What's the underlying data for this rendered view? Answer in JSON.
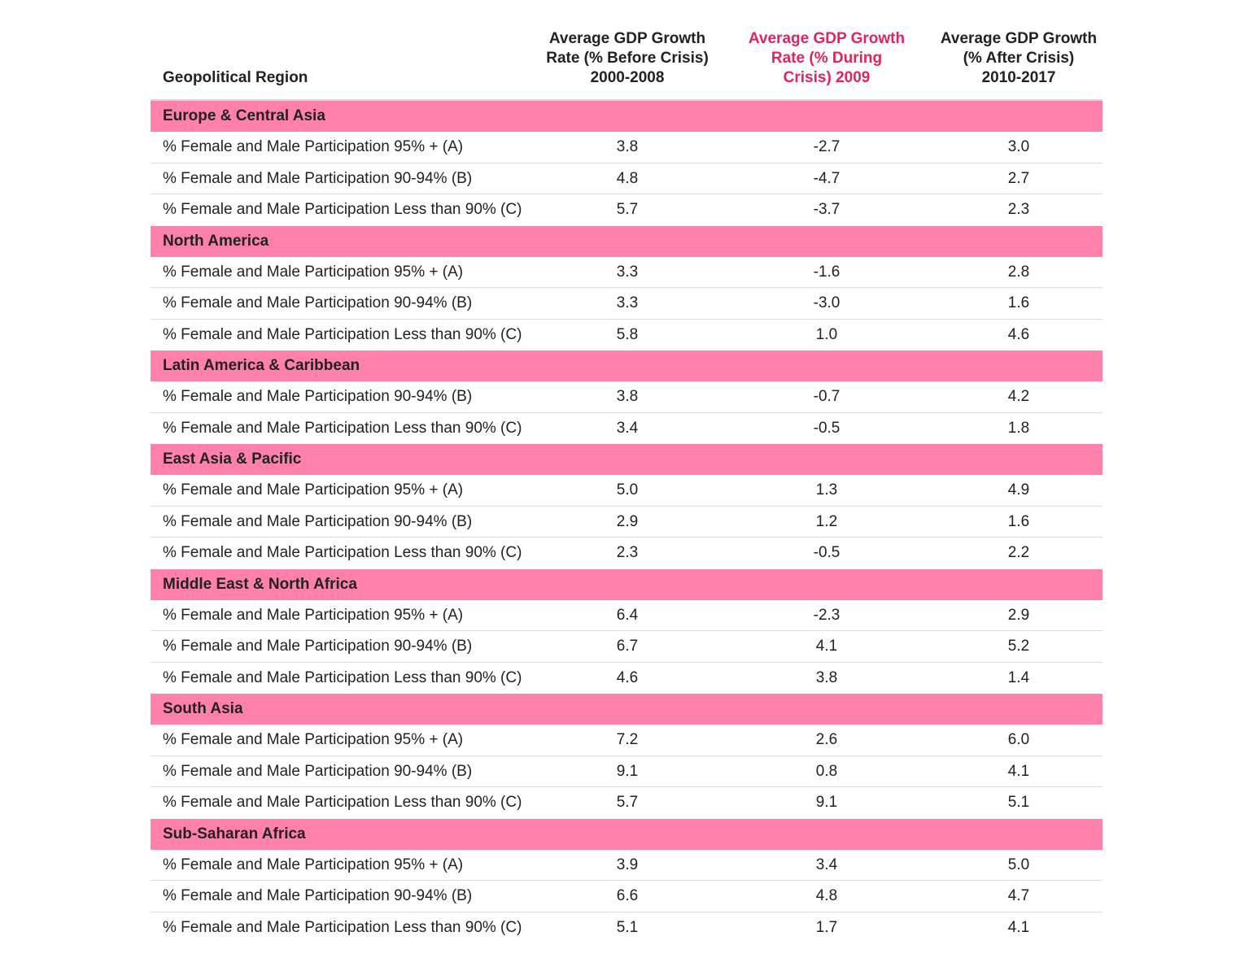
{
  "accent_color": "#e0245e",
  "band_color": "#ff80aa",
  "chart_data": {
    "type": "table",
    "columns": [
      {
        "lines": [
          "Geopolitical Region"
        ],
        "highlight": false
      },
      {
        "lines": [
          "Average GDP Growth",
          "Rate (% Before Crisis)",
          "2000-2008"
        ],
        "highlight": false
      },
      {
        "lines": [
          "Average GDP Growth",
          "Rate (% During",
          "Crisis) 2009"
        ],
        "highlight": true
      },
      {
        "lines": [
          "Average GDP Growth",
          "(% After Crisis)",
          "2010-2017"
        ],
        "highlight": false
      }
    ],
    "groups": [
      {
        "region": "Europe & Central Asia",
        "rows": [
          {
            "label": "% Female and Male Participation 95% + (A)",
            "values": [
              "3.8",
              "-2.7",
              "3.0"
            ]
          },
          {
            "label": "% Female and Male Participation 90-94% (B)",
            "values": [
              "4.8",
              "-4.7",
              "2.7"
            ]
          },
          {
            "label": "% Female and Male Participation Less than 90% (C)",
            "values": [
              "5.7",
              "-3.7",
              "2.3"
            ]
          }
        ]
      },
      {
        "region": "North America",
        "rows": [
          {
            "label": "% Female and Male Participation 95% + (A)",
            "values": [
              "3.3",
              "-1.6",
              "2.8"
            ]
          },
          {
            "label": "% Female and Male Participation 90-94% (B)",
            "values": [
              "3.3",
              "-3.0",
              "1.6"
            ]
          },
          {
            "label": "% Female and Male Participation Less than 90% (C)",
            "values": [
              "5.8",
              "1.0",
              "4.6"
            ]
          }
        ]
      },
      {
        "region": "Latin America & Caribbean",
        "rows": [
          {
            "label": "% Female and Male Participation 90-94% (B)",
            "values": [
              "3.8",
              "-0.7",
              "4.2"
            ]
          },
          {
            "label": "% Female and Male Participation Less than 90% (C)",
            "values": [
              "3.4",
              "-0.5",
              "1.8"
            ]
          }
        ]
      },
      {
        "region": "East Asia & Pacific",
        "rows": [
          {
            "label": "% Female and Male Participation 95% + (A)",
            "values": [
              "5.0",
              "1.3",
              "4.9"
            ]
          },
          {
            "label": "% Female and Male Participation 90-94% (B)",
            "values": [
              "2.9",
              "1.2",
              "1.6"
            ]
          },
          {
            "label": "% Female and Male Participation Less than 90% (C)",
            "values": [
              "2.3",
              "-0.5",
              "2.2"
            ]
          }
        ]
      },
      {
        "region": "Middle East & North Africa",
        "rows": [
          {
            "label": "% Female and Male Participation 95% + (A)",
            "values": [
              "6.4",
              "-2.3",
              "2.9"
            ]
          },
          {
            "label": "% Female and Male Participation 90-94% (B)",
            "values": [
              "6.7",
              "4.1",
              "5.2"
            ]
          },
          {
            "label": "% Female and Male Participation Less than 90% (C)",
            "values": [
              "4.6",
              "3.8",
              "1.4"
            ]
          }
        ]
      },
      {
        "region": "South Asia",
        "rows": [
          {
            "label": "% Female and Male Participation 95% + (A)",
            "values": [
              "7.2",
              "2.6",
              "6.0"
            ]
          },
          {
            "label": "% Female and Male Participation 90-94% (B)",
            "values": [
              "9.1",
              "0.8",
              "4.1"
            ]
          },
          {
            "label": "% Female and Male Participation Less than 90% (C)",
            "values": [
              "5.7",
              "9.1",
              "5.1"
            ]
          }
        ]
      },
      {
        "region": "Sub-Saharan Africa",
        "rows": [
          {
            "label": "% Female and Male Participation 95% + (A)",
            "values": [
              "3.9",
              "3.4",
              "5.0"
            ]
          },
          {
            "label": "% Female and Male Participation 90-94% (B)",
            "values": [
              "6.6",
              "4.8",
              "4.7"
            ]
          },
          {
            "label": "% Female and Male Participation Less than 90% (C)",
            "values": [
              "5.1",
              "1.7",
              "4.1"
            ]
          }
        ]
      }
    ]
  }
}
